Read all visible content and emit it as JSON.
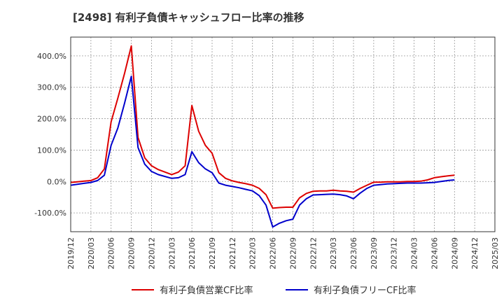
{
  "chart_data": {
    "type": "line",
    "title": "[2498]  有利子負債キャッシュフロー比率の推移",
    "xlabel": "",
    "ylabel": "",
    "ylim": [
      -160,
      460
    ],
    "yticks": [
      {
        "value": 400,
        "label": "400.0%"
      },
      {
        "value": 300,
        "label": "300.0%"
      },
      {
        "value": 200,
        "label": "200.0%"
      },
      {
        "value": 100,
        "label": "100.0%"
      },
      {
        "value": 0,
        "label": "0.0%"
      },
      {
        "value": -100,
        "label": "-100.0%"
      }
    ],
    "x_start": "2019/12",
    "x_ticks": [
      "2019/12",
      "2020/03",
      "2020/06",
      "2020/09",
      "2020/12",
      "2021/03",
      "2021/06",
      "2021/09",
      "2021/12",
      "2022/03",
      "2022/06",
      "2022/09",
      "2022/12",
      "2023/03",
      "2023/06",
      "2023/09",
      "2023/12",
      "2024/03",
      "2024/06",
      "2024/09",
      "2024/12",
      "2025/03"
    ],
    "grid": true,
    "legend_position": "bottom",
    "series": [
      {
        "name": "有利子負債営業CF比率",
        "color": "#dd0000",
        "points": [
          [
            "2019/12",
            -3
          ],
          [
            "2020/01",
            -1
          ],
          [
            "2020/02",
            1
          ],
          [
            "2020/03",
            3
          ],
          [
            "2020/04",
            12
          ],
          [
            "2020/05",
            40
          ],
          [
            "2020/06",
            190
          ],
          [
            "2020/07",
            265
          ],
          [
            "2020/08",
            345
          ],
          [
            "2020/09",
            432
          ],
          [
            "2020/10",
            140
          ],
          [
            "2020/11",
            75
          ],
          [
            "2020/12",
            50
          ],
          [
            "2021/01",
            38
          ],
          [
            "2021/02",
            30
          ],
          [
            "2021/03",
            22
          ],
          [
            "2021/04",
            30
          ],
          [
            "2021/05",
            50
          ],
          [
            "2021/06",
            242
          ],
          [
            "2021/07",
            160
          ],
          [
            "2021/08",
            115
          ],
          [
            "2021/09",
            90
          ],
          [
            "2021/10",
            28
          ],
          [
            "2021/11",
            10
          ],
          [
            "2021/12",
            2
          ],
          [
            "2022/01",
            -3
          ],
          [
            "2022/02",
            -7
          ],
          [
            "2022/03",
            -12
          ],
          [
            "2022/04",
            -22
          ],
          [
            "2022/05",
            -42
          ],
          [
            "2022/06",
            -85
          ],
          [
            "2022/07",
            -83
          ],
          [
            "2022/08",
            -82
          ],
          [
            "2022/09",
            -82
          ],
          [
            "2022/10",
            -52
          ],
          [
            "2022/11",
            -38
          ],
          [
            "2022/12",
            -31
          ],
          [
            "2023/01",
            -30
          ],
          [
            "2023/02",
            -30
          ],
          [
            "2023/03",
            -28
          ],
          [
            "2023/04",
            -30
          ],
          [
            "2023/05",
            -31
          ],
          [
            "2023/06",
            -34
          ],
          [
            "2023/07",
            -22
          ],
          [
            "2023/08",
            -12
          ],
          [
            "2023/09",
            -2
          ],
          [
            "2023/10",
            -2
          ],
          [
            "2023/11",
            -1
          ],
          [
            "2023/12",
            -1
          ],
          [
            "2024/01",
            -1
          ],
          [
            "2024/02",
            0
          ],
          [
            "2024/03",
            0
          ],
          [
            "2024/04",
            1
          ],
          [
            "2024/05",
            5
          ],
          [
            "2024/06",
            12
          ],
          [
            "2024/07",
            15
          ],
          [
            "2024/08",
            18
          ],
          [
            "2024/09",
            20
          ]
        ]
      },
      {
        "name": "有利子負債フリーCF比率",
        "color": "#0000cc",
        "points": [
          [
            "2019/12",
            -12
          ],
          [
            "2020/01",
            -9
          ],
          [
            "2020/02",
            -6
          ],
          [
            "2020/03",
            -3
          ],
          [
            "2020/04",
            3
          ],
          [
            "2020/05",
            20
          ],
          [
            "2020/06",
            115
          ],
          [
            "2020/07",
            170
          ],
          [
            "2020/08",
            250
          ],
          [
            "2020/09",
            335
          ],
          [
            "2020/10",
            108
          ],
          [
            "2020/11",
            55
          ],
          [
            "2020/12",
            32
          ],
          [
            "2021/01",
            22
          ],
          [
            "2021/02",
            16
          ],
          [
            "2021/03",
            10
          ],
          [
            "2021/04",
            12
          ],
          [
            "2021/05",
            22
          ],
          [
            "2021/06",
            95
          ],
          [
            "2021/07",
            60
          ],
          [
            "2021/08",
            40
          ],
          [
            "2021/09",
            28
          ],
          [
            "2021/10",
            -5
          ],
          [
            "2021/11",
            -12
          ],
          [
            "2021/12",
            -16
          ],
          [
            "2022/01",
            -20
          ],
          [
            "2022/02",
            -25
          ],
          [
            "2022/03",
            -30
          ],
          [
            "2022/04",
            -45
          ],
          [
            "2022/05",
            -75
          ],
          [
            "2022/06",
            -145
          ],
          [
            "2022/07",
            -133
          ],
          [
            "2022/08",
            -125
          ],
          [
            "2022/09",
            -120
          ],
          [
            "2022/10",
            -75
          ],
          [
            "2022/11",
            -55
          ],
          [
            "2022/12",
            -43
          ],
          [
            "2023/01",
            -42
          ],
          [
            "2023/02",
            -41
          ],
          [
            "2023/03",
            -40
          ],
          [
            "2023/04",
            -42
          ],
          [
            "2023/05",
            -46
          ],
          [
            "2023/06",
            -55
          ],
          [
            "2023/07",
            -37
          ],
          [
            "2023/08",
            -22
          ],
          [
            "2023/09",
            -12
          ],
          [
            "2023/10",
            -10
          ],
          [
            "2023/11",
            -8
          ],
          [
            "2023/12",
            -7
          ],
          [
            "2024/01",
            -6
          ],
          [
            "2024/02",
            -5
          ],
          [
            "2024/03",
            -5
          ],
          [
            "2024/04",
            -5
          ],
          [
            "2024/05",
            -4
          ],
          [
            "2024/06",
            -3
          ],
          [
            "2024/07",
            0
          ],
          [
            "2024/08",
            3
          ],
          [
            "2024/09",
            5
          ]
        ]
      }
    ]
  }
}
